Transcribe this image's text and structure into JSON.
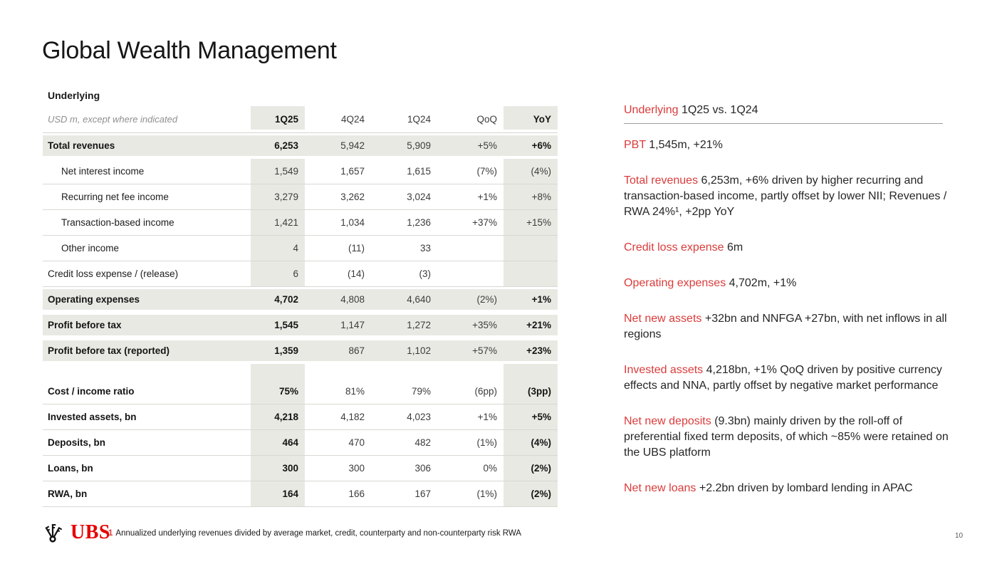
{
  "slide": {
    "title": "Global Wealth Management",
    "page_number": "10"
  },
  "table": {
    "section_label": "Underlying",
    "units_note": "USD m, except where indicated",
    "columns": [
      "1Q25",
      "4Q24",
      "1Q24",
      "QoQ",
      "YoY"
    ],
    "rows": [
      {
        "label": "Total revenues",
        "bold": true,
        "shaded": true,
        "values": [
          "6,253",
          "5,942",
          "5,909",
          "+5%",
          "+6%"
        ]
      },
      {
        "label": "Net interest income",
        "indent": true,
        "values": [
          "1,549",
          "1,657",
          "1,615",
          "(7%)",
          "(4%)"
        ]
      },
      {
        "label": "Recurring net fee income",
        "indent": true,
        "values": [
          "3,279",
          "3,262",
          "3,024",
          "+1%",
          "+8%"
        ]
      },
      {
        "label": "Transaction-based income",
        "indent": true,
        "values": [
          "1,421",
          "1,034",
          "1,236",
          "+37%",
          "+15%"
        ]
      },
      {
        "label": "Other income",
        "indent": true,
        "values": [
          "4",
          "(11)",
          "33",
          "",
          ""
        ]
      },
      {
        "label": "Credit loss expense / (release)",
        "values": [
          "6",
          "(14)",
          "(3)",
          "",
          ""
        ]
      },
      {
        "label": "Operating expenses",
        "bold": true,
        "shaded": true,
        "values": [
          "4,702",
          "4,808",
          "4,640",
          "(2%)",
          "+1%"
        ]
      },
      {
        "label": "Profit before tax",
        "bold": true,
        "shaded": true,
        "values": [
          "1,545",
          "1,147",
          "1,272",
          "+35%",
          "+21%"
        ]
      },
      {
        "label": "Profit before tax (reported)",
        "bold": true,
        "shaded": true,
        "values": [
          "1,359",
          "867",
          "1,102",
          "+57%",
          "+23%"
        ]
      },
      {
        "spacer": true
      },
      {
        "label": "Cost / income ratio",
        "bold": true,
        "values": [
          "75%",
          "81%",
          "79%",
          "(6pp)",
          "(3pp)"
        ]
      },
      {
        "label": "Invested assets, bn",
        "bold": true,
        "values": [
          "4,218",
          "4,182",
          "4,023",
          "+1%",
          "+5%"
        ]
      },
      {
        "label": "Deposits, bn",
        "bold": true,
        "values": [
          "464",
          "470",
          "482",
          "(1%)",
          "(4%)"
        ]
      },
      {
        "label": "Loans, bn",
        "bold": true,
        "values": [
          "300",
          "300",
          "306",
          "0%",
          "(2%)"
        ]
      },
      {
        "label": "RWA, bn",
        "bold": true,
        "values": [
          "164",
          "166",
          "167",
          "(1%)",
          "(2%)"
        ]
      }
    ]
  },
  "commentary": {
    "header": {
      "keyword": "Underlying",
      "text": "1Q25 vs. 1Q24"
    },
    "items": [
      {
        "keyword": "PBT",
        "text": "1,545m, +21%"
      },
      {
        "keyword": "Total revenues",
        "text": "6,253m, +6% driven by higher recurring and transaction-based income, partly offset by lower NII; Revenues / RWA 24%¹, +2pp YoY"
      },
      {
        "keyword": "Credit loss expense",
        "text": "6m"
      },
      {
        "keyword": "Operating expenses",
        "text": "4,702m, +1%"
      },
      {
        "keyword": "Net new assets",
        "text": "+32bn and NNFGA +27bn, with net inflows in all regions"
      },
      {
        "keyword": "Invested assets",
        "text": "4,218bn, +1% QoQ driven by positive currency effects and NNA, partly offset by negative market performance"
      },
      {
        "keyword": "Net new deposits",
        "text": "(9.3bn) mainly driven by the roll-off of preferential fixed term deposits, of which ~85% were retained on the UBS platform"
      },
      {
        "keyword": "Net new loans",
        "text": "+2.2bn driven by lombard lending in APAC"
      }
    ]
  },
  "footer": {
    "logo_text": "UBS",
    "footnote_marker": "1",
    "footnote_text": "Annualized underlying revenues divided by average market, credit, counterparty and non-counterparty risk RWA"
  },
  "colors": {
    "accent_red": "#db3b3b",
    "logo_red": "#e60000",
    "band_gray": "#e9e9e4",
    "border_gray": "#d8d8d3"
  }
}
